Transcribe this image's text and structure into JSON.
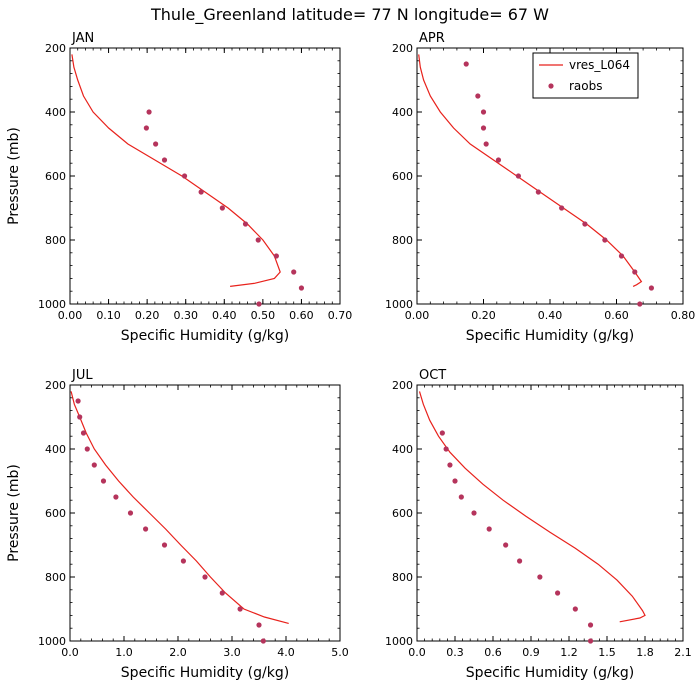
{
  "figure": {
    "title": "Thule_Greenland  latitude= 77 N longitude= 67 W"
  },
  "legend": {
    "placement": "top-right of APR panel",
    "entries": [
      {
        "name": "vres_L064",
        "kind": "line",
        "color": "#e8221c"
      },
      {
        "name": "raobs",
        "kind": "marker",
        "color": "#b5345c"
      }
    ]
  },
  "colors": {
    "model_line": "#e8221c",
    "obs_marker": "#b5345c",
    "axis": "#000000"
  },
  "chart_data": [
    {
      "type": "line",
      "panel": "JAN",
      "xlabel": "Specific Humidity (g/kg)",
      "ylabel": "Pressure (mb)",
      "xlim": [
        0,
        0.7
      ],
      "ylim": [
        200,
        1000
      ],
      "y_inverted": true,
      "xticks": [
        0,
        0.1,
        0.2,
        0.3,
        0.4,
        0.5,
        0.6,
        0.7
      ],
      "xtick_labels": [
        "0.00",
        "0.10",
        "0.20",
        "0.30",
        "0.40",
        "0.50",
        "0.60",
        "0.70"
      ],
      "yticks": [
        200,
        400,
        600,
        800,
        1000
      ],
      "ytick_labels": [
        "200",
        "400",
        "600",
        "800",
        "1000"
      ],
      "series": [
        {
          "name": "vres_L064",
          "type": "line",
          "points": [
            [
              0.005,
              220
            ],
            [
              0.01,
              260
            ],
            [
              0.02,
              300
            ],
            [
              0.035,
              350
            ],
            [
              0.06,
              400
            ],
            [
              0.1,
              450
            ],
            [
              0.15,
              500
            ],
            [
              0.22,
              550
            ],
            [
              0.29,
              600
            ],
            [
              0.35,
              650
            ],
            [
              0.41,
              700
            ],
            [
              0.46,
              750
            ],
            [
              0.5,
              800
            ],
            [
              0.53,
              850
            ],
            [
              0.545,
              900
            ],
            [
              0.53,
              920
            ],
            [
              0.48,
              935
            ],
            [
              0.415,
              945
            ]
          ]
        },
        {
          "name": "raobs",
          "type": "scatter",
          "points": [
            [
              0.205,
              400
            ],
            [
              0.198,
              450
            ],
            [
              0.222,
              500
            ],
            [
              0.245,
              550
            ],
            [
              0.297,
              600
            ],
            [
              0.34,
              650
            ],
            [
              0.395,
              700
            ],
            [
              0.455,
              750
            ],
            [
              0.488,
              800
            ],
            [
              0.535,
              850
            ],
            [
              0.58,
              900
            ],
            [
              0.6,
              950
            ],
            [
              0.49,
              1000
            ]
          ]
        }
      ]
    },
    {
      "type": "line",
      "panel": "APR",
      "xlabel": "Specific Humidity (g/kg)",
      "ylabel": "",
      "xlim": [
        0,
        0.8
      ],
      "ylim": [
        200,
        1000
      ],
      "y_inverted": true,
      "xticks": [
        0,
        0.2,
        0.4,
        0.6,
        0.8
      ],
      "xtick_labels": [
        "0.00",
        "0.20",
        "0.40",
        "0.60",
        "0.80"
      ],
      "yticks": [
        200,
        400,
        600,
        800,
        1000
      ],
      "ytick_labels": [
        "200",
        "400",
        "600",
        "800",
        "1000"
      ],
      "series": [
        {
          "name": "vres_L064",
          "type": "line",
          "points": [
            [
              0.005,
              220
            ],
            [
              0.01,
              260
            ],
            [
              0.02,
              300
            ],
            [
              0.04,
              350
            ],
            [
              0.07,
              400
            ],
            [
              0.11,
              450
            ],
            [
              0.16,
              500
            ],
            [
              0.23,
              550
            ],
            [
              0.3,
              600
            ],
            [
              0.37,
              650
            ],
            [
              0.44,
              700
            ],
            [
              0.51,
              750
            ],
            [
              0.57,
              800
            ],
            [
              0.62,
              850
            ],
            [
              0.655,
              900
            ],
            [
              0.675,
              930
            ],
            [
              0.66,
              940
            ],
            [
              0.65,
              945
            ]
          ]
        },
        {
          "name": "raobs",
          "type": "scatter",
          "points": [
            [
              0.148,
              250
            ],
            [
              0.183,
              350
            ],
            [
              0.2,
              400
            ],
            [
              0.2,
              450
            ],
            [
              0.208,
              500
            ],
            [
              0.245,
              550
            ],
            [
              0.305,
              600
            ],
            [
              0.365,
              650
            ],
            [
              0.435,
              700
            ],
            [
              0.505,
              750
            ],
            [
              0.565,
              800
            ],
            [
              0.615,
              850
            ],
            [
              0.655,
              900
            ],
            [
              0.705,
              950
            ],
            [
              0.67,
              1000
            ]
          ]
        }
      ]
    },
    {
      "type": "line",
      "panel": "JUL",
      "xlabel": "Specific Humidity (g/kg)",
      "ylabel": "Pressure (mb)",
      "xlim": [
        0,
        5.0
      ],
      "ylim": [
        200,
        1000
      ],
      "y_inverted": true,
      "xticks": [
        0,
        1,
        2,
        3,
        4,
        5
      ],
      "xtick_labels": [
        "0.0",
        "1.0",
        "2.0",
        "3.0",
        "4.0",
        "5.0"
      ],
      "yticks": [
        200,
        400,
        600,
        800,
        1000
      ],
      "ytick_labels": [
        "200",
        "400",
        "600",
        "800",
        "1000"
      ],
      "series": [
        {
          "name": "vres_L064",
          "type": "line",
          "points": [
            [
              0.02,
              220
            ],
            [
              0.08,
              260
            ],
            [
              0.18,
              300
            ],
            [
              0.3,
              350
            ],
            [
              0.45,
              400
            ],
            [
              0.66,
              450
            ],
            [
              0.9,
              500
            ],
            [
              1.17,
              550
            ],
            [
              1.47,
              600
            ],
            [
              1.77,
              650
            ],
            [
              2.05,
              700
            ],
            [
              2.34,
              750
            ],
            [
              2.6,
              800
            ],
            [
              2.88,
              850
            ],
            [
              3.22,
              900
            ],
            [
              3.6,
              925
            ],
            [
              4.05,
              945
            ]
          ]
        },
        {
          "name": "raobs",
          "type": "scatter",
          "points": [
            [
              0.15,
              250
            ],
            [
              0.18,
              300
            ],
            [
              0.25,
              350
            ],
            [
              0.32,
              400
            ],
            [
              0.45,
              450
            ],
            [
              0.62,
              500
            ],
            [
              0.85,
              550
            ],
            [
              1.12,
              600
            ],
            [
              1.4,
              650
            ],
            [
              1.75,
              700
            ],
            [
              2.1,
              750
            ],
            [
              2.5,
              800
            ],
            [
              2.82,
              850
            ],
            [
              3.15,
              900
            ],
            [
              3.5,
              950
            ],
            [
              3.58,
              1000
            ]
          ]
        }
      ]
    },
    {
      "type": "line",
      "panel": "OCT",
      "xlabel": "Specific Humidity (g/kg)",
      "ylabel": "",
      "xlim": [
        0,
        2.1
      ],
      "ylim": [
        200,
        1000
      ],
      "y_inverted": true,
      "xticks": [
        0,
        0.3,
        0.6,
        0.9,
        1.2,
        1.5,
        1.8,
        2.1
      ],
      "xtick_labels": [
        "0.0",
        "0.3",
        "0.6",
        "0.9",
        "1.2",
        "1.5",
        "1.8",
        "2.1"
      ],
      "yticks": [
        200,
        400,
        600,
        800,
        1000
      ],
      "ytick_labels": [
        "200",
        "400",
        "600",
        "800",
        "1000"
      ],
      "series": [
        {
          "name": "vres_L064",
          "type": "line",
          "points": [
            [
              0.02,
              220
            ],
            [
              0.05,
              260
            ],
            [
              0.1,
              310
            ],
            [
              0.17,
              360
            ],
            [
              0.26,
              410
            ],
            [
              0.38,
              460
            ],
            [
              0.52,
              510
            ],
            [
              0.68,
              560
            ],
            [
              0.86,
              610
            ],
            [
              1.05,
              660
            ],
            [
              1.25,
              710
            ],
            [
              1.43,
              760
            ],
            [
              1.58,
              810
            ],
            [
              1.7,
              860
            ],
            [
              1.78,
              905
            ],
            [
              1.8,
              920
            ],
            [
              1.76,
              928
            ],
            [
              1.6,
              940
            ]
          ]
        },
        {
          "name": "raobs",
          "type": "scatter",
          "points": [
            [
              0.2,
              350
            ],
            [
              0.23,
              400
            ],
            [
              0.26,
              450
            ],
            [
              0.3,
              500
            ],
            [
              0.35,
              550
            ],
            [
              0.45,
              600
            ],
            [
              0.57,
              650
            ],
            [
              0.7,
              700
            ],
            [
              0.81,
              750
            ],
            [
              0.97,
              800
            ],
            [
              1.11,
              850
            ],
            [
              1.25,
              900
            ],
            [
              1.37,
              950
            ],
            [
              1.37,
              1000
            ]
          ]
        }
      ]
    }
  ]
}
